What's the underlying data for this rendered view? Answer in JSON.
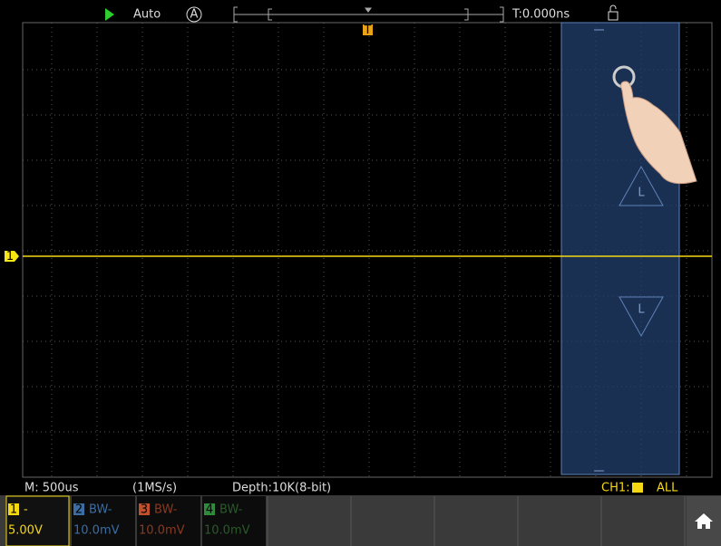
{
  "top_bar": {
    "mode": "Auto",
    "auto_icon": "A",
    "trigger_time": "T:0.000ns"
  },
  "markers": {
    "trigger": "T",
    "channel": "1",
    "cursor_labels": [
      "L",
      "L"
    ]
  },
  "status_bar": {
    "timebase": "M: 500us",
    "sample_rate": "(1MS/s)",
    "depth": "Depth:10K(8-bit)",
    "trigger_source": "CH1:",
    "scope": "ALL"
  },
  "channels": [
    {
      "number": "1",
      "setting": "-",
      "scale": "5.00V"
    },
    {
      "number": "2",
      "setting": "BW-",
      "scale": "10.0mV"
    },
    {
      "number": "3",
      "setting": "BW-",
      "scale": "10.0mV"
    },
    {
      "number": "4",
      "setting": "BW-",
      "scale": "10.0mV"
    }
  ]
}
